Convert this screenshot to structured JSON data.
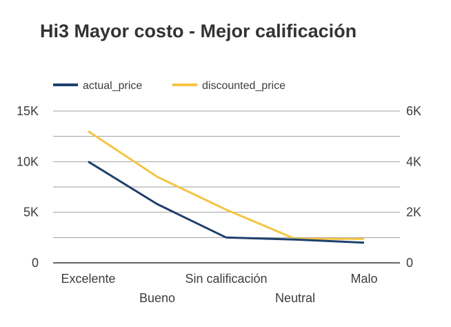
{
  "chart_data": {
    "type": "line",
    "title": "Hi3 Mayor costo - Mejor calificación",
    "categories": [
      "Excelente",
      "Bueno",
      "Sin calificación",
      "Neutral",
      "Malo"
    ],
    "series": [
      {
        "name": "actual_price",
        "axis": "left",
        "color": "#1d3f6e",
        "values": [
          10000,
          5800,
          2500,
          2300,
          2000
        ]
      },
      {
        "name": "discounted_price",
        "axis": "right",
        "color": "#f4c542",
        "values": [
          5200,
          3400,
          2100,
          950,
          950
        ]
      }
    ],
    "y_left": {
      "ticks": [
        "0",
        "5K",
        "10K",
        "15K"
      ],
      "ylim": [
        0,
        15000
      ]
    },
    "y_right": {
      "ticks": [
        "0",
        "2K",
        "4K",
        "6K"
      ],
      "ylim": [
        0,
        6000
      ]
    },
    "grid": true,
    "legend": "top-left"
  }
}
